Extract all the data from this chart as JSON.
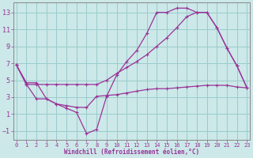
{
  "bg_color": "#cce8e8",
  "line_color": "#993399",
  "grid_color": "#99cccc",
  "xlabel": "Windchill (Refroidissement éolien,°C)",
  "xlim": [
    -0.3,
    23.3
  ],
  "ylim": [
    -2.0,
    14.2
  ],
  "xticks": [
    0,
    1,
    2,
    3,
    4,
    5,
    6,
    7,
    8,
    9,
    10,
    11,
    12,
    13,
    14,
    15,
    16,
    17,
    18,
    19,
    20,
    21,
    22,
    23
  ],
  "yticks": [
    -1,
    1,
    3,
    5,
    7,
    9,
    11,
    13
  ],
  "line1_x": [
    0,
    1,
    2,
    3,
    4,
    5,
    6,
    7,
    8,
    9,
    10,
    11,
    12,
    13,
    14,
    15,
    16,
    17,
    18,
    19,
    20,
    21,
    22,
    23
  ],
  "line1_y": [
    6.8,
    4.7,
    4.7,
    2.8,
    2.2,
    1.7,
    1.2,
    -1.3,
    -0.8,
    3.1,
    5.6,
    7.2,
    8.5,
    10.5,
    13.0,
    13.0,
    13.5,
    13.5,
    13.0,
    13.0,
    11.2,
    8.8,
    6.7,
    4.1
  ],
  "line2_x": [
    0,
    1,
    2,
    3,
    4,
    5,
    6,
    7,
    8,
    9,
    10,
    11,
    12,
    13,
    14,
    15,
    16,
    17,
    18,
    19,
    20,
    21,
    22,
    23
  ],
  "line2_y": [
    6.8,
    4.5,
    4.5,
    4.5,
    4.5,
    4.5,
    4.5,
    4.5,
    4.5,
    5.0,
    5.8,
    6.5,
    7.2,
    8.0,
    9.0,
    10.0,
    11.2,
    12.5,
    13.0,
    13.0,
    11.2,
    8.8,
    6.7,
    4.1
  ],
  "line3_x": [
    0,
    1,
    2,
    3,
    4,
    5,
    6,
    7,
    8,
    9,
    10,
    11,
    12,
    13,
    14,
    15,
    16,
    17,
    18,
    19,
    20,
    21,
    22,
    23
  ],
  "line3_y": [
    6.8,
    4.5,
    2.8,
    2.8,
    2.2,
    2.0,
    1.8,
    1.8,
    3.1,
    3.2,
    3.3,
    3.5,
    3.7,
    3.9,
    4.0,
    4.0,
    4.1,
    4.2,
    4.3,
    4.4,
    4.4,
    4.4,
    4.2,
    4.1
  ]
}
